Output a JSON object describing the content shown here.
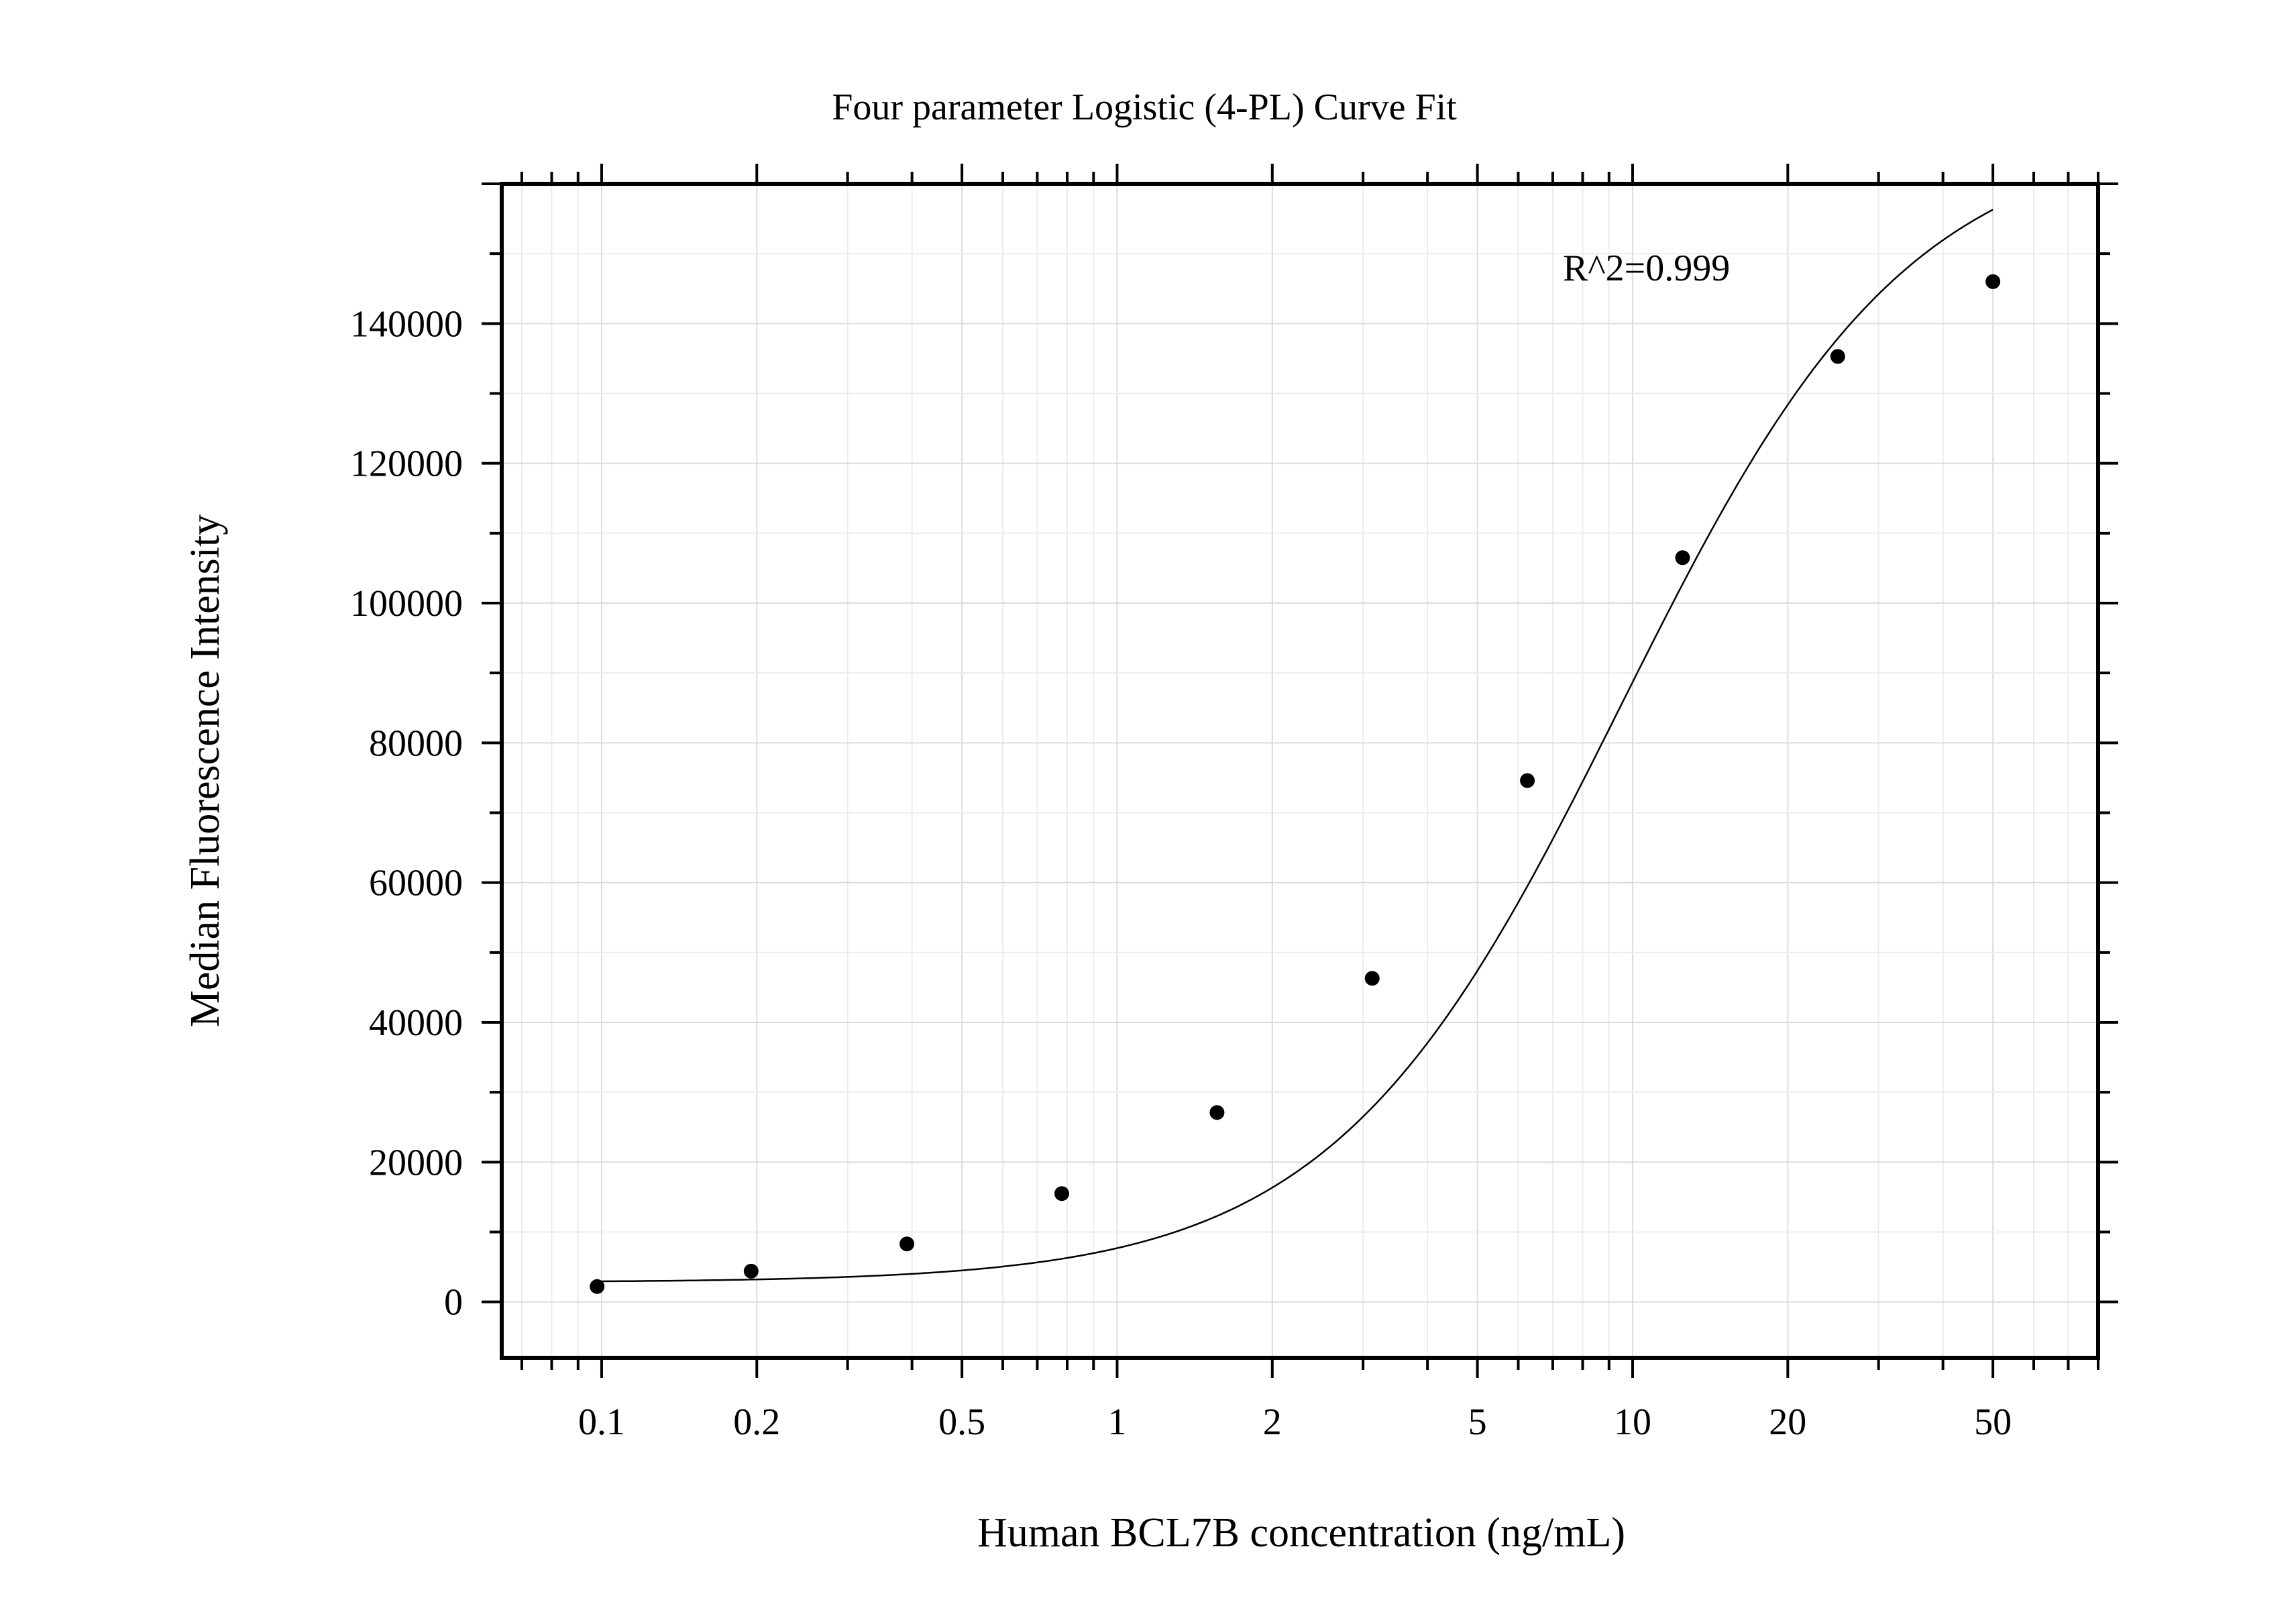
{
  "chart_data": {
    "type": "scatter",
    "title": "Four parameter Logistic (4-PL) Curve Fit",
    "xlabel": "Human BCL7B concentration (ng/mL)",
    "ylabel": "Median Fluorescence Intensity",
    "x_scale": "log",
    "xlim": [
      0.064,
      80
    ],
    "ylim": [
      -8000,
      160000
    ],
    "x_ticks": [
      0.1,
      0.2,
      0.5,
      1,
      2,
      5,
      10,
      20,
      50
    ],
    "x_tick_labels": [
      "0.1",
      "0.2",
      "0.5",
      "1",
      "2",
      "5",
      "10",
      "20",
      "50"
    ],
    "y_ticks": [
      0,
      20000,
      40000,
      60000,
      80000,
      100000,
      120000,
      140000
    ],
    "y_tick_labels": [
      "0",
      "20000",
      "40000",
      "60000",
      "80000",
      "100000",
      "120000",
      "140000"
    ],
    "grid": true,
    "annotation": "R^2=0.999",
    "points": {
      "x": [
        0.098,
        0.195,
        0.391,
        0.781,
        1.5625,
        3.125,
        6.25,
        12.5,
        25,
        50
      ],
      "y": [
        2200,
        4400,
        8300,
        15500,
        27100,
        46300,
        74600,
        106500,
        135300,
        146000
      ]
    },
    "fit": {
      "model": "4PL",
      "A": 2800,
      "B": 1.55,
      "C": 9.5,
      "D": 168000,
      "x_range": [
        0.098,
        50
      ]
    },
    "colors": {
      "points": "#000000",
      "curve": "#000000",
      "grid": "#dcdcdc"
    }
  }
}
